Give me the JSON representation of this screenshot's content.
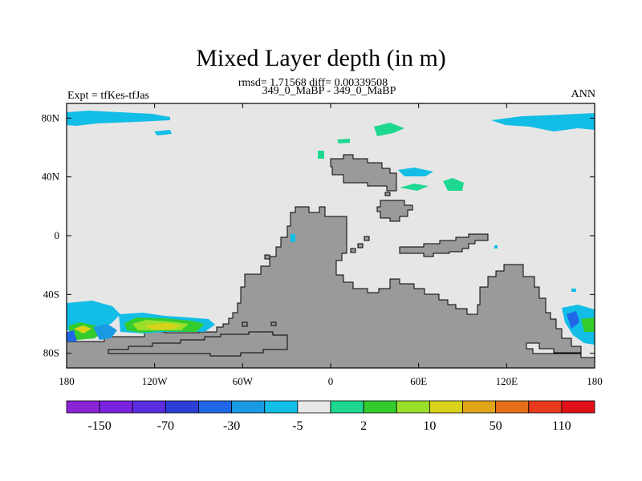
{
  "header": {
    "title": "Mixed Layer depth (in m)",
    "stats": "rmsd= 1.71568 diff= 0.00339508",
    "cases": "349_0_MaBP - 349_0_MaBP",
    "expt": "Expt = tfKes-tfJas",
    "season": "ANN"
  },
  "chart_data": {
    "type": "heatmap",
    "title": "Mixed Layer depth (in m)",
    "xlim": [
      -180,
      180
    ],
    "ylim": [
      -90,
      90
    ],
    "x_ticks": [
      {
        "value": -180,
        "label": "180"
      },
      {
        "value": -120,
        "label": "120W"
      },
      {
        "value": -60,
        "label": "60W"
      },
      {
        "value": 0,
        "label": "0"
      },
      {
        "value": 60,
        "label": "60E"
      },
      {
        "value": 120,
        "label": "120E"
      },
      {
        "value": 180,
        "label": "180"
      }
    ],
    "y_ticks": [
      {
        "value": 80,
        "label": "80N"
      },
      {
        "value": 40,
        "label": "40N"
      },
      {
        "value": 0,
        "label": "0"
      },
      {
        "value": -40,
        "label": "40S"
      },
      {
        "value": -80,
        "label": "80S"
      }
    ],
    "background_color": "#e6e6e6",
    "land_color": "#9a9a9a",
    "colorbar": {
      "colors": [
        "#8a22d6",
        "#7a22e0",
        "#5a2ee0",
        "#2c3fd9",
        "#1f67e6",
        "#1a9ae2",
        "#12bde6",
        "#e8e8e8",
        "#1ed890",
        "#34cc2c",
        "#9adf2a",
        "#d8d21a",
        "#e1a518",
        "#e56e18",
        "#e63a1a",
        "#e0101a"
      ],
      "labels": [
        "-150",
        "-70",
        "-30",
        "-5",
        "2",
        "10",
        "50",
        "110"
      ],
      "label_positions": [
        1,
        3,
        5,
        7,
        9,
        11,
        13,
        15
      ]
    }
  }
}
